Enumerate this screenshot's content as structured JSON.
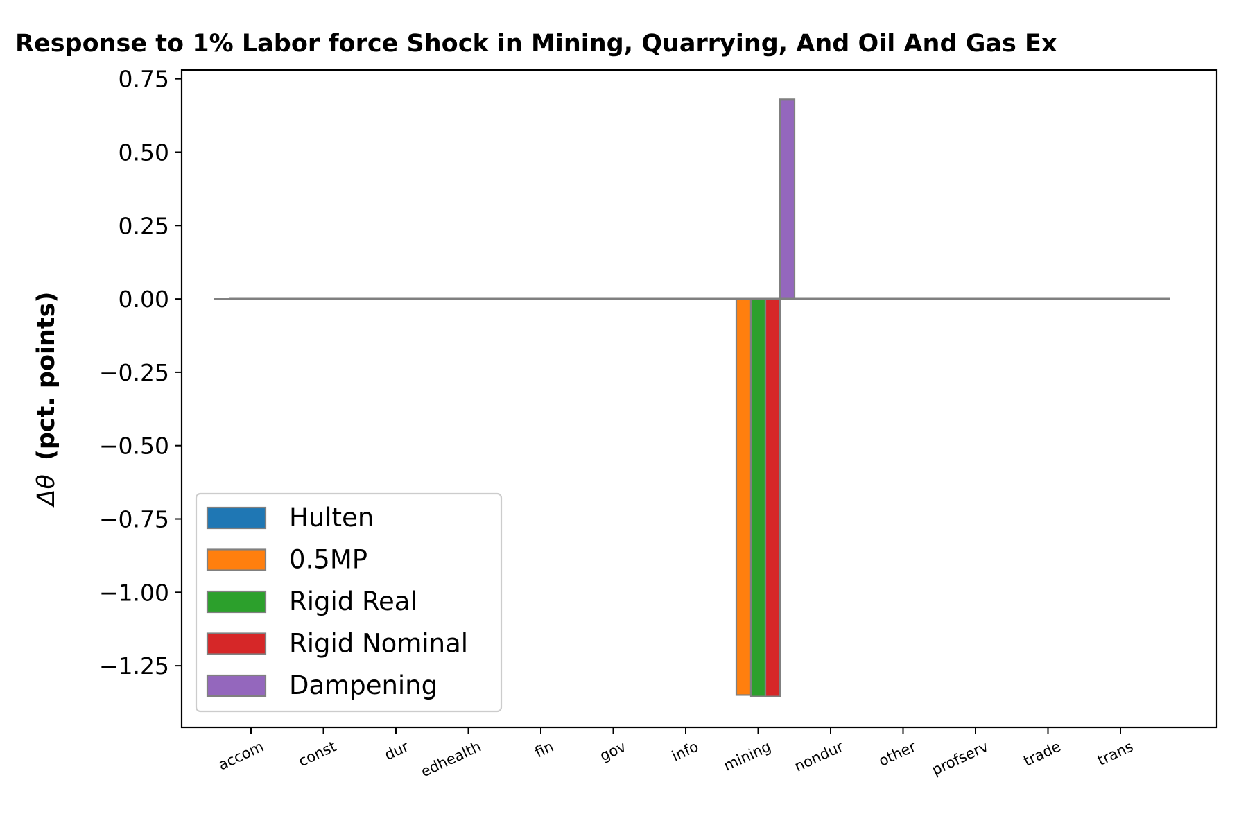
{
  "chart_data": {
    "type": "bar",
    "title": "Response to 1% Labor force Shock in Mining, Quarrying, And Oil And Gas Ex",
    "ylabel_symbol": "Δθ",
    "ylabel": "(pct. points)",
    "xlabel": "",
    "ylim": [
      -1.46,
      0.78
    ],
    "yticks": [
      0.75,
      0.5,
      0.25,
      0.0,
      -0.25,
      -0.5,
      -0.75,
      -1.0,
      -1.25
    ],
    "ytick_labels": [
      "0.75",
      "0.50",
      "0.25",
      "0.00",
      "−0.25",
      "−0.50",
      "−0.75",
      "−1.00",
      "−1.25"
    ],
    "categories": [
      "accom",
      "const",
      "dur",
      "edhealth",
      "fin",
      "gov",
      "info",
      "mining",
      "nondur",
      "other",
      "profserv",
      "trade",
      "trans"
    ],
    "legend_position": "lower-left",
    "grid": false,
    "zero_line": true,
    "series": [
      {
        "name": "Hulten",
        "color": "#1f77b4",
        "values": [
          0,
          0,
          0,
          0,
          0,
          0,
          0,
          0.0,
          0,
          0,
          0,
          0,
          0
        ]
      },
      {
        "name": "0.5MP",
        "color": "#ff7f0e",
        "values": [
          0,
          0,
          0,
          0,
          0,
          0,
          0,
          -1.35,
          0,
          0,
          0,
          0,
          0
        ]
      },
      {
        "name": "Rigid Real",
        "color": "#2ca02c",
        "values": [
          0,
          0,
          0,
          0,
          0,
          0,
          0,
          -1.355,
          0,
          0,
          0,
          0,
          0
        ]
      },
      {
        "name": "Rigid Nominal",
        "color": "#d62728",
        "values": [
          0,
          0,
          0,
          0,
          0,
          0,
          0,
          -1.355,
          0,
          0,
          0,
          0,
          0
        ]
      },
      {
        "name": "Dampening",
        "color": "#9467bd",
        "values": [
          0,
          0,
          0,
          0,
          0,
          0,
          0,
          0.68,
          0,
          0,
          0,
          0,
          0
        ]
      }
    ]
  }
}
